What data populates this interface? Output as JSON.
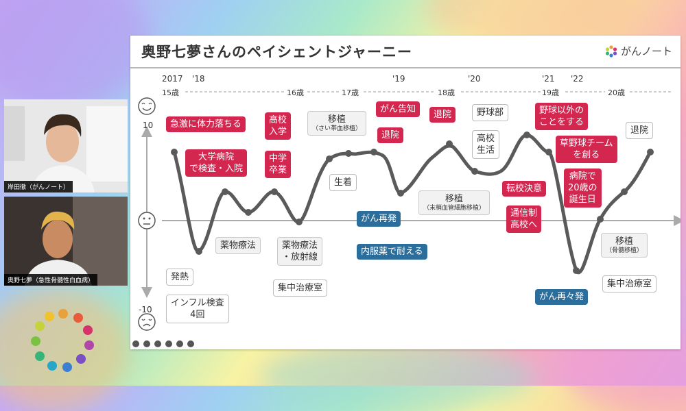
{
  "slide": {
    "title": "奥野七夢さんのペイシェントジャーニー",
    "logo_text": "がんノート",
    "years": [
      "2017",
      "'18",
      "'19",
      "'20",
      "'21",
      "'22"
    ],
    "ages": [
      "15歳",
      "16歳",
      "17歳",
      "18歳",
      "19歳",
      "20歳"
    ],
    "axis": {
      "top": "10",
      "bottom": "-10"
    },
    "events": {
      "e1": "急激に体力落ちる",
      "e2a": "大学病院",
      "e2b": "で検査・入院",
      "e3a": "高校",
      "e3b": "入学",
      "e4a": "中学",
      "e4b": "卒業",
      "e5a": "移植",
      "e5b": "（さい帯血移植）",
      "e6": "がん告知",
      "e7": "退院",
      "e8": "退院",
      "e9": "野球部",
      "e10a": "高校",
      "e10b": "生活",
      "e11a": "野球以外の",
      "e11b": "ことをする",
      "e12": "退院",
      "e13a": "草野球チーム",
      "e13b": "を創る",
      "e14a": "病院で",
      "e14b": "20歳の",
      "e14c": "誕生日",
      "e15": "転校決意",
      "e16a": "通信制",
      "e16b": "高校へ",
      "e17": "生着",
      "e18": "がん再発",
      "e19a": "移植",
      "e19b": "（末梢血管細胞移植）",
      "e20": "内服薬で耐える",
      "e21": "薬物療法",
      "e22a": "薬物療法",
      "e22b": "・放射線",
      "e23": "集中治療室",
      "e24": "発熱",
      "e25a": "インフル検査",
      "e25b": "4回",
      "e26": "がん再々発",
      "e27a": "移植",
      "e27b": "（骨髄移植）",
      "e28": "集中治療室"
    }
  },
  "participants": [
    {
      "name": "岸田徹（がんノート）"
    },
    {
      "name": "奥野七夢（急性骨髄性白血病）"
    }
  ],
  "colors": {
    "red": "#d32750",
    "blue": "#2b6d9b",
    "gray": "#f2f2f2",
    "curve": "#555555"
  }
}
